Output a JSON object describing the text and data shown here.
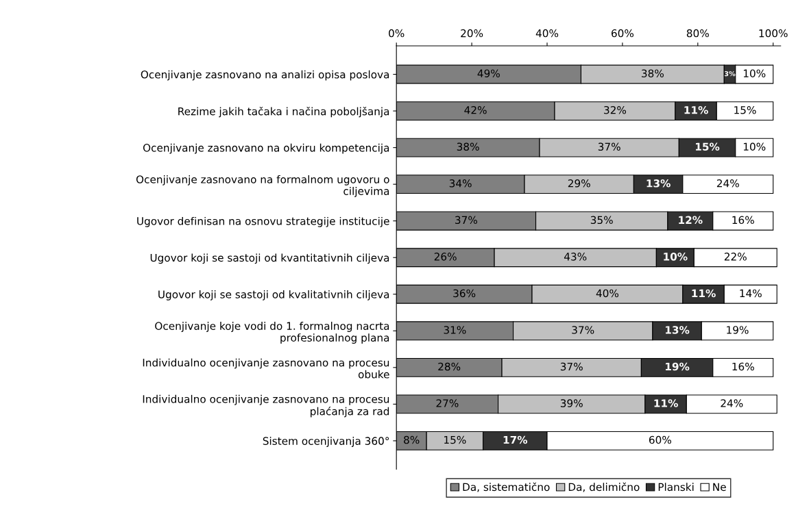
{
  "chart_data": {
    "type": "bar",
    "orientation": "horizontal",
    "stacked": true,
    "categories": [
      "Ocenjivanje zasnovano na analizi opisa poslova",
      "Rezime jakih tačaka i načina poboljšanja",
      "Ocenjivanje zasnovano na okviru kompetencija",
      "Ocenjivanje zasnovano na formalnom ugovoru o\nciljevima",
      "Ugovor definisan na osnovu strategije institucije",
      "Ugovor koji se sastoji od kvantitativnih ciljeva",
      "Ugovor koji se sastoji od kvalitativnih ciljeva",
      "Ocenjivanje koje vodi do 1. formalnog nacrta\nprofesionalnog plana",
      "Individualno ocenjivanje zasnovano na procesu\nobuke",
      "Individualno ocenjivanje zasnovano na procesu\nplaćanja za rad",
      "Sistem ocenjivanja 360°"
    ],
    "series": [
      {
        "name": "Da, sistematično",
        "color": "#808080",
        "values": [
          49,
          42,
          38,
          34,
          37,
          26,
          36,
          31,
          28,
          27,
          8
        ],
        "value_labels": [
          "49%",
          "42%",
          "38%",
          "34%",
          "37%",
          "26%",
          "36%",
          "31%",
          "28%",
          "27%",
          "8%"
        ]
      },
      {
        "name": "Da, delimično",
        "color": "#c0c0c0",
        "values": [
          38,
          32,
          37,
          29,
          35,
          43,
          40,
          37,
          37,
          39,
          15
        ],
        "value_labels": [
          "38%",
          "32%",
          "37%",
          "29%",
          "35%",
          "43%",
          "40%",
          "37%",
          "37%",
          "39%",
          "15%"
        ]
      },
      {
        "name": "Planski",
        "color": "#333333",
        "values": [
          3,
          11,
          15,
          13,
          12,
          10,
          11,
          13,
          19,
          11,
          17
        ],
        "value_labels": [
          "3%",
          "11%",
          "15%",
          "13%",
          "12%",
          "10%",
          "11%",
          "13%",
          "19%",
          "11%",
          "17%"
        ]
      },
      {
        "name": "Ne",
        "color": "#ffffff",
        "values": [
          10,
          15,
          10,
          24,
          16,
          22,
          14,
          19,
          16,
          24,
          60
        ],
        "value_labels": [
          "10%",
          "15%",
          "10%",
          "24%",
          "16%",
          "22%",
          "14%",
          "19%",
          "16%",
          "24%",
          "60%"
        ]
      }
    ],
    "xlim": [
      0,
      102
    ],
    "xticks": [
      {
        "value": 0,
        "label": "0%"
      },
      {
        "value": 20,
        "label": "20%"
      },
      {
        "value": 40,
        "label": "40%"
      },
      {
        "value": 60,
        "label": "60%"
      },
      {
        "value": 80,
        "label": "80%"
      },
      {
        "value": 100,
        "label": "100%"
      }
    ],
    "grid": false,
    "legend": "bottom"
  }
}
